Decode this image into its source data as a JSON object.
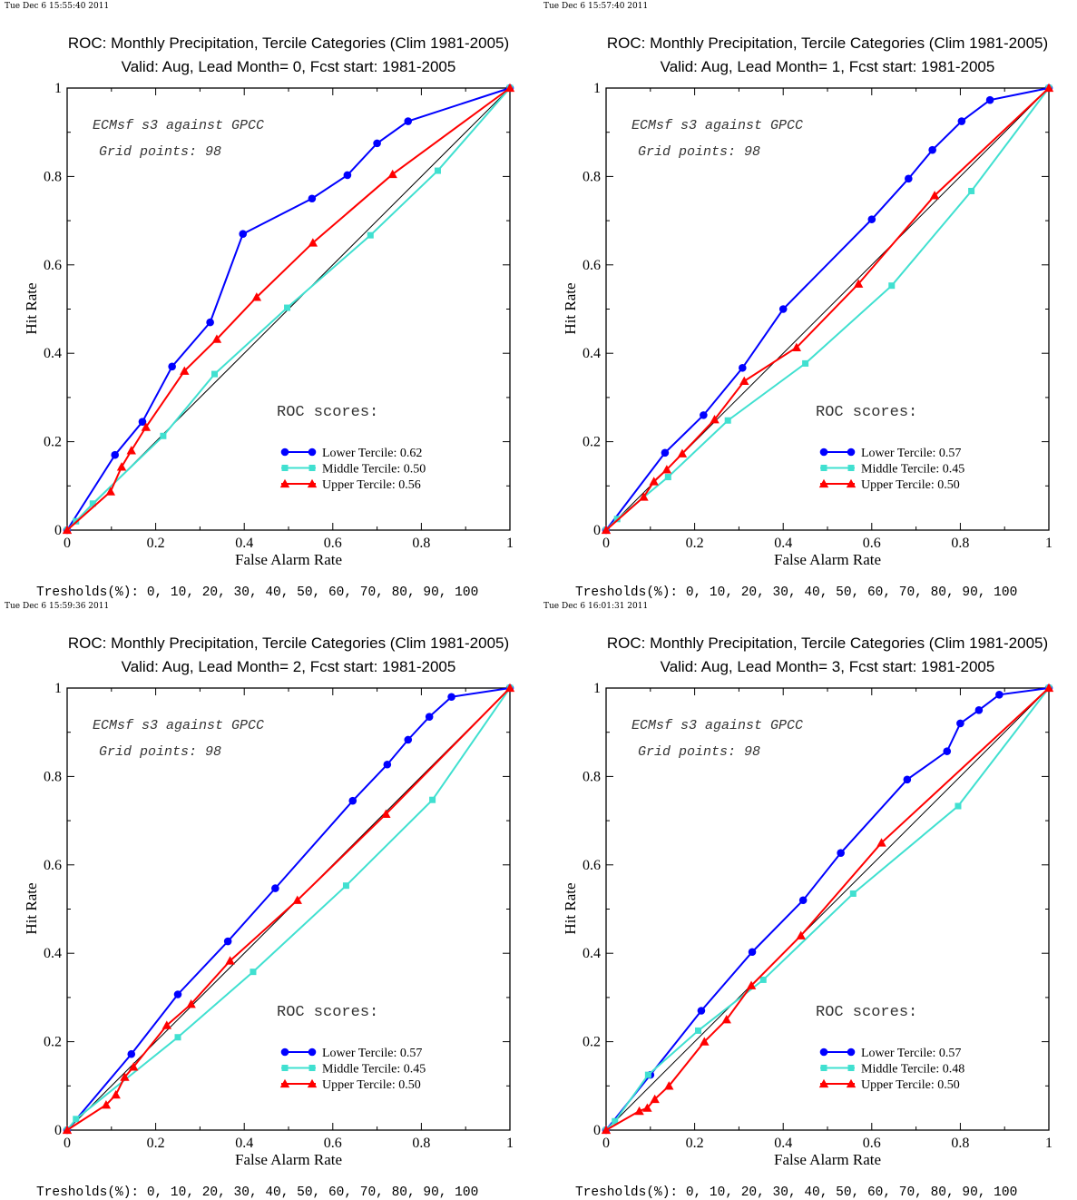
{
  "colors": {
    "lower": "#0000ff",
    "middle": "#40e0d0",
    "upper": "#ff0000",
    "diagonal": "#000000"
  },
  "common": {
    "xlabel": "False Alarm Rate",
    "ylabel": "Hit Rate",
    "annotation_line1": "ECMsf s3 against GPCC",
    "annotation_line2": "Grid points:   98",
    "scores_heading": "ROC scores:",
    "thresholds": "Tresholds(%): 0, 10, 20, 30, 40, 50, 60, 70, 80, 90, 100",
    "x_ticks": [
      "0",
      "0.2",
      "0.4",
      "0.6",
      "0.8",
      "1"
    ],
    "y_ticks": [
      "0",
      "0.2",
      "0.4",
      "0.6",
      "0.8",
      "1"
    ]
  },
  "chart_data": [
    {
      "type": "line",
      "timestamp": "Tue Dec  6 15:55:40 2011",
      "title": "ROC: Monthly Precipitation, Tercile Categories (Clim 1981-2005)",
      "subtitle": "Valid: Aug, Lead Month= 0, Fcst start: 1981-2005",
      "xlabel": "False Alarm Rate",
      "ylabel": "Hit Rate",
      "xlim": [
        0,
        1
      ],
      "ylim": [
        0,
        1
      ],
      "series": [
        {
          "name": "Lower Tercile: 0.62",
          "marker": "circle",
          "x": [
            0,
            0.108,
            0.17,
            0.237,
            0.323,
            0.397,
            0.553,
            0.633,
            0.7,
            0.77,
            1
          ],
          "y": [
            0,
            0.17,
            0.245,
            0.37,
            0.47,
            0.67,
            0.75,
            0.803,
            0.875,
            0.925,
            1
          ]
        },
        {
          "name": "Middle Tercile: 0.50",
          "marker": "square",
          "x": [
            0,
            0.02,
            0.058,
            0.217,
            0.333,
            0.497,
            0.685,
            0.837,
            1
          ],
          "y": [
            0,
            0.02,
            0.06,
            0.213,
            0.353,
            0.503,
            0.667,
            0.813,
            1
          ]
        },
        {
          "name": "Upper Tercile: 0.56",
          "marker": "triangle",
          "x": [
            0,
            0.098,
            0.123,
            0.145,
            0.178,
            0.265,
            0.338,
            0.428,
            0.555,
            0.735,
            1
          ],
          "y": [
            0,
            0.087,
            0.143,
            0.18,
            0.233,
            0.36,
            0.432,
            0.527,
            0.65,
            0.805,
            1
          ]
        }
      ]
    },
    {
      "type": "line",
      "timestamp": "Tue Dec  6 15:57:40 2011",
      "title": "ROC: Monthly Precipitation, Tercile Categories (Clim 1981-2005)",
      "subtitle": "Valid: Aug, Lead Month= 1, Fcst start: 1981-2005",
      "xlabel": "False Alarm Rate",
      "ylabel": "Hit Rate",
      "xlim": [
        0,
        1
      ],
      "ylim": [
        0,
        1
      ],
      "series": [
        {
          "name": "Lower Tercile: 0.57",
          "marker": "circle",
          "x": [
            0,
            0.133,
            0.22,
            0.308,
            0.4,
            0.6,
            0.683,
            0.737,
            0.803,
            0.867,
            1
          ],
          "y": [
            0,
            0.175,
            0.26,
            0.367,
            0.5,
            0.703,
            0.795,
            0.86,
            0.925,
            0.973,
            1
          ]
        },
        {
          "name": "Middle Tercile: 0.45",
          "marker": "square",
          "x": [
            0,
            0.025,
            0.14,
            0.275,
            0.45,
            0.645,
            0.825,
            1
          ],
          "y": [
            0,
            0.025,
            0.12,
            0.248,
            0.377,
            0.553,
            0.767,
            1
          ]
        },
        {
          "name": "Upper Tercile: 0.50",
          "marker": "triangle",
          "x": [
            0,
            0.085,
            0.108,
            0.137,
            0.172,
            0.245,
            0.312,
            0.43,
            0.57,
            0.742,
            1
          ],
          "y": [
            0,
            0.075,
            0.11,
            0.137,
            0.173,
            0.25,
            0.337,
            0.413,
            0.557,
            0.757,
            1
          ]
        }
      ]
    },
    {
      "type": "line",
      "timestamp": "Tue Dec  6 15:59:36 2011",
      "title": "ROC: Monthly Precipitation, Tercile Categories (Clim 1981-2005)",
      "subtitle": "Valid: Aug, Lead Month= 2, Fcst start: 1981-2005",
      "xlabel": "False Alarm Rate",
      "ylabel": "Hit Rate",
      "xlim": [
        0,
        1
      ],
      "ylim": [
        0,
        1
      ],
      "series": [
        {
          "name": "Lower Tercile: 0.57",
          "marker": "circle",
          "x": [
            0,
            0.145,
            0.25,
            0.363,
            0.47,
            0.645,
            0.723,
            0.77,
            0.818,
            0.868,
            1
          ],
          "y": [
            0,
            0.172,
            0.307,
            0.427,
            0.547,
            0.745,
            0.827,
            0.883,
            0.935,
            0.98,
            1
          ]
        },
        {
          "name": "Middle Tercile: 0.45",
          "marker": "square",
          "x": [
            0,
            0.02,
            0.25,
            0.42,
            0.63,
            0.825,
            1
          ],
          "y": [
            0,
            0.025,
            0.21,
            0.358,
            0.553,
            0.747,
            1
          ]
        },
        {
          "name": "Upper Tercile: 0.50",
          "marker": "triangle",
          "x": [
            0,
            0.088,
            0.11,
            0.13,
            0.15,
            0.225,
            0.28,
            0.368,
            0.52,
            0.72,
            1
          ],
          "y": [
            0,
            0.057,
            0.08,
            0.12,
            0.143,
            0.237,
            0.285,
            0.383,
            0.52,
            0.715,
            1
          ]
        }
      ]
    },
    {
      "type": "line",
      "timestamp": "Tue Dec  6 16:01:31 2011",
      "title": "ROC: Monthly Precipitation, Tercile Categories (Clim 1981-2005)",
      "subtitle": "Valid: Aug, Lead Month= 3, Fcst start: 1981-2005",
      "xlabel": "False Alarm Rate",
      "ylabel": "Hit Rate",
      "xlim": [
        0,
        1
      ],
      "ylim": [
        0,
        1
      ],
      "series": [
        {
          "name": "Lower Tercile: 0.57",
          "marker": "circle",
          "x": [
            0,
            0.1,
            0.215,
            0.33,
            0.445,
            0.53,
            0.68,
            0.77,
            0.8,
            0.842,
            0.888,
            1
          ],
          "y": [
            0,
            0.125,
            0.27,
            0.403,
            0.52,
            0.627,
            0.793,
            0.857,
            0.92,
            0.95,
            0.985,
            1
          ]
        },
        {
          "name": "Middle Tercile: 0.48",
          "marker": "square",
          "x": [
            0,
            0.02,
            0.095,
            0.208,
            0.355,
            0.558,
            0.795,
            1
          ],
          "y": [
            0,
            0.02,
            0.125,
            0.225,
            0.34,
            0.535,
            0.733,
            1
          ]
        },
        {
          "name": "Upper Tercile: 0.50",
          "marker": "triangle",
          "x": [
            0,
            0.075,
            0.093,
            0.11,
            0.142,
            0.222,
            0.272,
            0.328,
            0.44,
            0.622,
            1
          ],
          "y": [
            0,
            0.043,
            0.05,
            0.07,
            0.1,
            0.2,
            0.25,
            0.327,
            0.44,
            0.65,
            1
          ]
        }
      ]
    }
  ]
}
